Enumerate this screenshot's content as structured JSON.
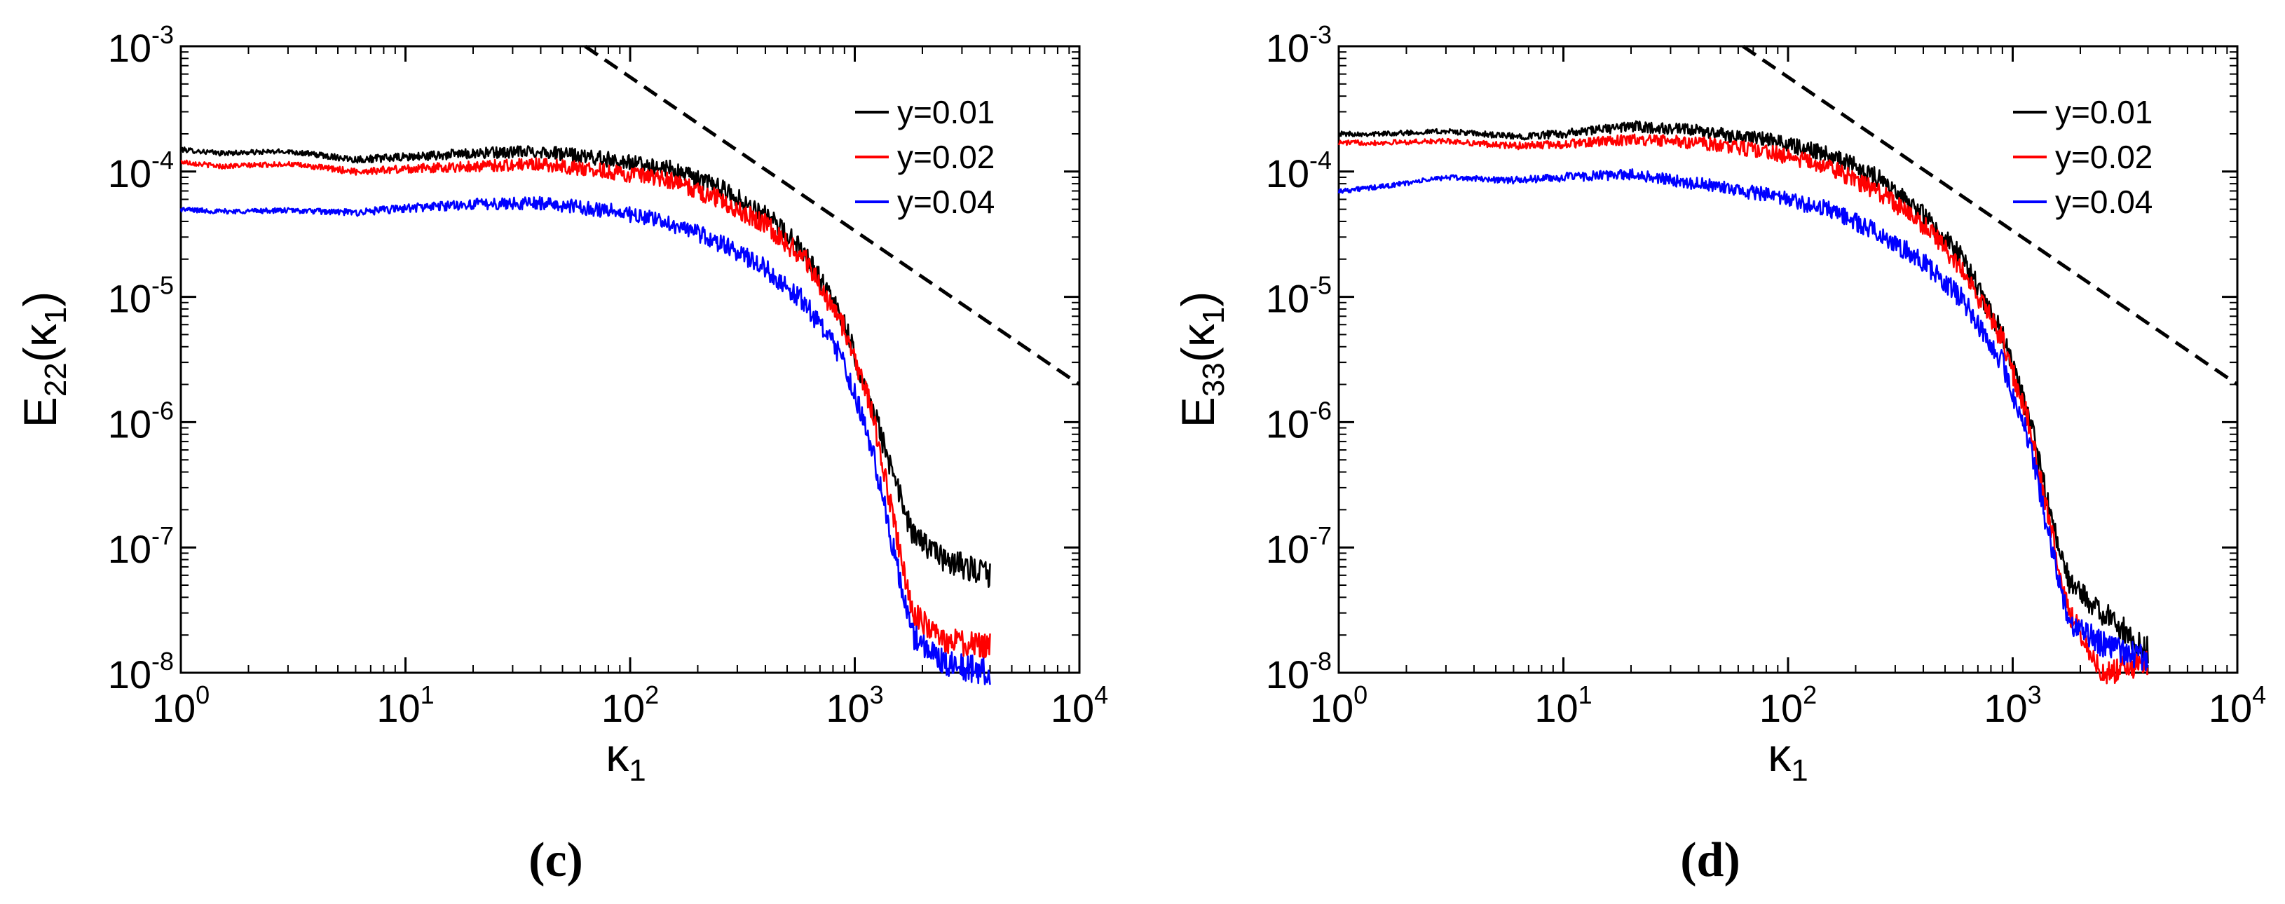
{
  "chart_data": [
    {
      "type": "line",
      "panel_label": "(c)",
      "ylabel_main": "E",
      "ylabel_sub": "22",
      "ylabel_arg_open": "(κ",
      "ylabel_arg_sub": "1",
      "ylabel_arg_close": ")",
      "xlabel_main": "κ",
      "xlabel_sub": "1",
      "xscale": "log",
      "yscale": "log",
      "xlim": [
        1,
        10000
      ],
      "ylim": [
        1e-08,
        0.001
      ],
      "xticks": [
        {
          "base": "10",
          "exp": "0"
        },
        {
          "base": "10",
          "exp": "1"
        },
        {
          "base": "10",
          "exp": "2"
        },
        {
          "base": "10",
          "exp": "3"
        },
        {
          "base": "10",
          "exp": "4"
        }
      ],
      "yticks": [
        {
          "base": "10",
          "exp": "-8"
        },
        {
          "base": "10",
          "exp": "-7"
        },
        {
          "base": "10",
          "exp": "-6"
        },
        {
          "base": "10",
          "exp": "-5"
        },
        {
          "base": "10",
          "exp": "-4"
        },
        {
          "base": "10",
          "exp": "-3"
        }
      ],
      "legend_position": "top-right",
      "series": [
        {
          "name": "y=0.01",
          "color": "#000000",
          "x": [
            1,
            1.5,
            3,
            6,
            10,
            20,
            40,
            80,
            150,
            250,
            400,
            600,
            900,
            1200,
            1500,
            1800,
            2500,
            4000
          ],
          "y": [
            0.00015,
            0.00014,
            0.000145,
            0.000125,
            0.00013,
            0.00014,
            0.000145,
            0.000125,
            0.000105,
            7.5e-05,
            4.5e-05,
            2.3e-05,
            6e-06,
            1.3e-06,
            3.5e-07,
            1.3e-07,
            8e-08,
            6e-08
          ]
        },
        {
          "name": "y=0.02",
          "color": "#ff0000",
          "x": [
            1,
            1.5,
            3,
            6,
            10,
            20,
            40,
            80,
            150,
            250,
            400,
            600,
            900,
            1200,
            1500,
            1800,
            2500,
            4000
          ],
          "y": [
            0.00012,
            0.00011,
            0.000115,
            0.0001,
            0.000105,
            0.00011,
            0.000115,
            0.0001,
            8.5e-05,
            6e-05,
            3.8e-05,
            2e-05,
            5.5e-06,
            1.2e-06,
            1.5e-07,
            3e-08,
            1.8e-08,
            1.6e-08
          ]
        },
        {
          "name": "y=0.04",
          "color": "#0000ff",
          "x": [
            1,
            1.5,
            3,
            6,
            10,
            20,
            40,
            80,
            150,
            250,
            400,
            600,
            900,
            1200,
            1500,
            1800,
            2500,
            4000
          ],
          "y": [
            5e-05,
            4.8e-05,
            4.9e-05,
            4.7e-05,
            5.1e-05,
            5.5e-05,
            5.6e-05,
            4.9e-05,
            3.9e-05,
            2.7e-05,
            1.7e-05,
            9e-06,
            3e-06,
            6e-07,
            9e-08,
            2e-08,
            1.2e-08,
            1e-08
          ]
        }
      ],
      "reference_line": {
        "style": "dashed",
        "color": "#000000",
        "x": [
          63,
          10000
        ],
        "y": [
          0.001,
          2e-06
        ]
      }
    },
    {
      "type": "line",
      "panel_label": "(d)",
      "ylabel_main": "E",
      "ylabel_sub": "33",
      "ylabel_arg_open": "(κ",
      "ylabel_arg_sub": "1",
      "ylabel_arg_close": ")",
      "xlabel_main": "κ",
      "xlabel_sub": "1",
      "xscale": "log",
      "yscale": "log",
      "xlim": [
        1,
        10000
      ],
      "ylim": [
        1e-08,
        0.001
      ],
      "xticks": [
        {
          "base": "10",
          "exp": "0"
        },
        {
          "base": "10",
          "exp": "1"
        },
        {
          "base": "10",
          "exp": "2"
        },
        {
          "base": "10",
          "exp": "3"
        },
        {
          "base": "10",
          "exp": "4"
        }
      ],
      "yticks": [
        {
          "base": "10",
          "exp": "-8"
        },
        {
          "base": "10",
          "exp": "-7"
        },
        {
          "base": "10",
          "exp": "-6"
        },
        {
          "base": "10",
          "exp": "-5"
        },
        {
          "base": "10",
          "exp": "-4"
        },
        {
          "base": "10",
          "exp": "-3"
        }
      ],
      "legend_position": "top-right",
      "series": [
        {
          "name": "y=0.01",
          "color": "#000000",
          "x": [
            1,
            1.5,
            3,
            6,
            10,
            20,
            40,
            80,
            150,
            250,
            400,
            600,
            900,
            1200,
            1500,
            1800,
            2500,
            4000
          ],
          "y": [
            0.0002,
            0.0002,
            0.00021,
            0.00019,
            0.0002,
            0.00023,
            0.00021,
            0.00018,
            0.00014,
            9e-05,
            4.5e-05,
            2e-05,
            5e-06,
            1e-06,
            1.5e-07,
            5e-08,
            3e-08,
            1.5e-08
          ]
        },
        {
          "name": "y=0.02",
          "color": "#ff0000",
          "x": [
            1,
            1.5,
            3,
            6,
            10,
            20,
            40,
            80,
            150,
            250,
            400,
            600,
            900,
            1200,
            1500,
            1800,
            2500,
            4000
          ],
          "y": [
            0.00017,
            0.00017,
            0.000175,
            0.00016,
            0.000165,
            0.00018,
            0.00017,
            0.000145,
            0.00011,
            7e-05,
            3.8e-05,
            1.7e-05,
            4.5e-06,
            9e-07,
            1.2e-07,
            3e-08,
            1e-08,
            1.2e-08
          ]
        },
        {
          "name": "y=0.04",
          "color": "#0000ff",
          "x": [
            1,
            1.5,
            3,
            6,
            10,
            20,
            40,
            80,
            150,
            250,
            400,
            600,
            900,
            1200,
            1500,
            1800,
            2500,
            4000
          ],
          "y": [
            7e-05,
            7.5e-05,
            9e-05,
            8.5e-05,
            9e-05,
            9.5e-05,
            8e-05,
            6.5e-05,
            5e-05,
            3.3e-05,
            1.9e-05,
            9.5e-06,
            3e-06,
            6.5e-07,
            9e-08,
            2.5e-08,
            1.7e-08,
            1.3e-08
          ]
        }
      ],
      "reference_line": {
        "style": "dashed",
        "color": "#000000",
        "x": [
          63,
          10000
        ],
        "y": [
          0.001,
          2e-06
        ]
      }
    }
  ]
}
